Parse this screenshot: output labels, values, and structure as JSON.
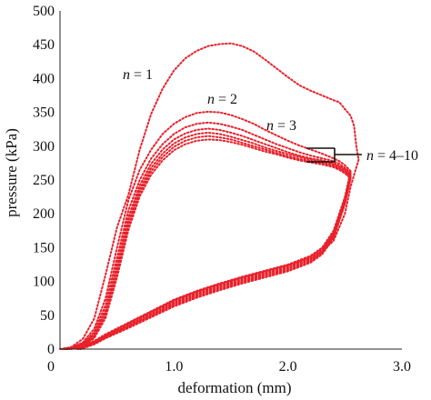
{
  "chart_data": {
    "type": "line",
    "xlabel": "deformation (mm)",
    "ylabel": "pressure (kPa)",
    "xlim": [
      0,
      3.0
    ],
    "ylim": [
      0,
      500
    ],
    "x_ticks": [
      "0",
      "1.0",
      "2.0",
      "3.0"
    ],
    "y_ticks": [
      "0",
      "50",
      "100",
      "150",
      "200",
      "250",
      "300",
      "350",
      "400",
      "450",
      "500"
    ],
    "line_color": "#e8212b",
    "line_style": "dotted",
    "grid": false,
    "annotations": [
      {
        "text": "n = 1"
      },
      {
        "text": "n = 2"
      },
      {
        "text": "n = 3"
      },
      {
        "text": "n = 4–10"
      }
    ],
    "series": [
      {
        "loading": [
          [
            0.0,
            0
          ],
          [
            0.1,
            3
          ],
          [
            0.2,
            15
          ],
          [
            0.3,
            45
          ],
          [
            0.4,
            110
          ],
          [
            0.5,
            180
          ],
          [
            0.6,
            228
          ],
          [
            0.7,
            295
          ],
          [
            0.8,
            348
          ],
          [
            0.9,
            385
          ],
          [
            1.0,
            412
          ],
          [
            1.1,
            430
          ],
          [
            1.2,
            441
          ],
          [
            1.3,
            448
          ],
          [
            1.4,
            451
          ],
          [
            1.5,
            452
          ],
          [
            1.6,
            448
          ],
          [
            1.7,
            440
          ],
          [
            1.8,
            428
          ],
          [
            1.9,
            415
          ],
          [
            2.0,
            402
          ],
          [
            2.1,
            390
          ],
          [
            2.2,
            382
          ],
          [
            2.3,
            375
          ],
          [
            2.4,
            368
          ],
          [
            2.45,
            365
          ],
          [
            2.5,
            355
          ],
          [
            2.55,
            345
          ],
          [
            2.58,
            330
          ],
          [
            2.6,
            300
          ],
          [
            2.62,
            280
          ]
        ],
        "unloading": [
          [
            2.62,
            280
          ],
          [
            2.55,
            240
          ],
          [
            2.5,
            200
          ],
          [
            2.4,
            160
          ],
          [
            2.3,
            145
          ],
          [
            2.2,
            135
          ],
          [
            2.0,
            124
          ],
          [
            1.8,
            115
          ],
          [
            1.6,
            106
          ],
          [
            1.4,
            96
          ],
          [
            1.2,
            85
          ],
          [
            1.0,
            72
          ],
          [
            0.8,
            55
          ],
          [
            0.6,
            38
          ],
          [
            0.4,
            20
          ],
          [
            0.3,
            10
          ],
          [
            0.2,
            3
          ],
          [
            0.1,
            0
          ]
        ]
      },
      {
        "loading": [
          [
            0.02,
            0
          ],
          [
            0.1,
            2
          ],
          [
            0.2,
            10
          ],
          [
            0.3,
            30
          ],
          [
            0.4,
            75
          ],
          [
            0.5,
            150
          ],
          [
            0.6,
            220
          ],
          [
            0.7,
            265
          ],
          [
            0.8,
            295
          ],
          [
            0.9,
            318
          ],
          [
            1.0,
            333
          ],
          [
            1.1,
            343
          ],
          [
            1.2,
            349
          ],
          [
            1.3,
            351
          ],
          [
            1.4,
            350
          ],
          [
            1.5,
            346
          ],
          [
            1.6,
            340
          ],
          [
            1.7,
            333
          ],
          [
            1.8,
            324
          ],
          [
            1.9,
            316
          ],
          [
            2.0,
            308
          ],
          [
            2.1,
            301
          ],
          [
            2.2,
            295
          ],
          [
            2.3,
            289
          ],
          [
            2.4,
            282
          ],
          [
            2.45,
            278
          ],
          [
            2.5,
            272
          ],
          [
            2.55,
            263
          ]
        ],
        "unloading": [
          [
            2.55,
            263
          ],
          [
            2.5,
            225
          ],
          [
            2.4,
            175
          ],
          [
            2.3,
            150
          ],
          [
            2.2,
            138
          ],
          [
            2.0,
            125
          ],
          [
            1.8,
            116
          ],
          [
            1.6,
            107
          ],
          [
            1.4,
            97
          ],
          [
            1.2,
            86
          ],
          [
            1.0,
            73
          ],
          [
            0.8,
            56
          ],
          [
            0.6,
            39
          ],
          [
            0.4,
            22
          ],
          [
            0.3,
            12
          ],
          [
            0.2,
            4
          ],
          [
            0.12,
            0
          ]
        ]
      },
      {
        "loading": [
          [
            0.04,
            0
          ],
          [
            0.1,
            2
          ],
          [
            0.2,
            8
          ],
          [
            0.3,
            25
          ],
          [
            0.4,
            65
          ],
          [
            0.5,
            135
          ],
          [
            0.6,
            205
          ],
          [
            0.7,
            250
          ],
          [
            0.8,
            282
          ],
          [
            0.9,
            303
          ],
          [
            1.0,
            318
          ],
          [
            1.1,
            328
          ],
          [
            1.2,
            333
          ],
          [
            1.3,
            335
          ],
          [
            1.4,
            333
          ],
          [
            1.5,
            329
          ],
          [
            1.6,
            324
          ],
          [
            1.7,
            317
          ],
          [
            1.8,
            310
          ],
          [
            1.9,
            303
          ],
          [
            2.0,
            297
          ],
          [
            2.1,
            291
          ],
          [
            2.2,
            286
          ],
          [
            2.3,
            282
          ],
          [
            2.4,
            278
          ],
          [
            2.45,
            274
          ],
          [
            2.5,
            268
          ],
          [
            2.55,
            260
          ]
        ],
        "unloading": [
          [
            2.55,
            260
          ],
          [
            2.5,
            222
          ],
          [
            2.4,
            172
          ],
          [
            2.3,
            148
          ],
          [
            2.2,
            136
          ],
          [
            2.0,
            123
          ],
          [
            1.8,
            114
          ],
          [
            1.6,
            105
          ],
          [
            1.4,
            95
          ],
          [
            1.2,
            84
          ],
          [
            1.0,
            71
          ],
          [
            0.8,
            54
          ],
          [
            0.6,
            37
          ],
          [
            0.4,
            20
          ],
          [
            0.3,
            11
          ],
          [
            0.2,
            3
          ],
          [
            0.14,
            0
          ]
        ]
      },
      {
        "loading": [
          [
            0.05,
            0
          ],
          [
            0.1,
            2
          ],
          [
            0.2,
            7
          ],
          [
            0.3,
            22
          ],
          [
            0.4,
            58
          ],
          [
            0.5,
            125
          ],
          [
            0.6,
            195
          ],
          [
            0.7,
            242
          ],
          [
            0.8,
            274
          ],
          [
            0.9,
            295
          ],
          [
            1.0,
            310
          ],
          [
            1.1,
            319
          ],
          [
            1.2,
            324
          ],
          [
            1.3,
            326
          ],
          [
            1.4,
            324
          ],
          [
            1.5,
            320
          ],
          [
            1.6,
            315
          ],
          [
            1.7,
            309
          ],
          [
            1.8,
            303
          ],
          [
            1.9,
            297
          ],
          [
            2.0,
            291
          ],
          [
            2.1,
            286
          ],
          [
            2.2,
            282
          ],
          [
            2.3,
            279
          ],
          [
            2.4,
            275
          ],
          [
            2.45,
            271
          ],
          [
            2.5,
            266
          ],
          [
            2.55,
            258
          ]
        ],
        "unloading": [
          [
            2.55,
            258
          ],
          [
            2.5,
            220
          ],
          [
            2.4,
            170
          ],
          [
            2.3,
            146
          ],
          [
            2.2,
            134
          ],
          [
            2.0,
            121
          ],
          [
            1.8,
            112
          ],
          [
            1.6,
            103
          ],
          [
            1.4,
            93
          ],
          [
            1.2,
            82
          ],
          [
            1.0,
            69
          ],
          [
            0.8,
            52
          ],
          [
            0.6,
            35
          ],
          [
            0.4,
            19
          ],
          [
            0.3,
            10
          ],
          [
            0.2,
            3
          ],
          [
            0.15,
            0
          ]
        ]
      },
      {
        "loading": [
          [
            0.06,
            0
          ],
          [
            0.1,
            2
          ],
          [
            0.2,
            6
          ],
          [
            0.3,
            20
          ],
          [
            0.4,
            54
          ],
          [
            0.5,
            118
          ],
          [
            0.6,
            188
          ],
          [
            0.7,
            236
          ],
          [
            0.8,
            268
          ],
          [
            0.9,
            289
          ],
          [
            1.0,
            304
          ],
          [
            1.1,
            313
          ],
          [
            1.2,
            318
          ],
          [
            1.3,
            320
          ],
          [
            1.4,
            318
          ],
          [
            1.5,
            314
          ],
          [
            1.6,
            309
          ],
          [
            1.7,
            304
          ],
          [
            1.8,
            298
          ],
          [
            1.9,
            293
          ],
          [
            2.0,
            288
          ],
          [
            2.1,
            284
          ],
          [
            2.2,
            280
          ],
          [
            2.3,
            277
          ],
          [
            2.4,
            273
          ],
          [
            2.45,
            269
          ],
          [
            2.5,
            264
          ],
          [
            2.55,
            256
          ]
        ],
        "unloading": [
          [
            2.55,
            256
          ],
          [
            2.5,
            218
          ],
          [
            2.4,
            168
          ],
          [
            2.3,
            144
          ],
          [
            2.2,
            132
          ],
          [
            2.0,
            119
          ],
          [
            1.8,
            110
          ],
          [
            1.6,
            101
          ],
          [
            1.4,
            91
          ],
          [
            1.2,
            80
          ],
          [
            1.0,
            67
          ],
          [
            0.8,
            50
          ],
          [
            0.6,
            34
          ],
          [
            0.4,
            18
          ],
          [
            0.3,
            9
          ],
          [
            0.2,
            2
          ],
          [
            0.16,
            0
          ]
        ]
      },
      {
        "loading": [
          [
            0.07,
            0
          ],
          [
            0.1,
            1
          ],
          [
            0.2,
            5
          ],
          [
            0.3,
            18
          ],
          [
            0.4,
            50
          ],
          [
            0.5,
            112
          ],
          [
            0.6,
            182
          ],
          [
            0.7,
            231
          ],
          [
            0.8,
            263
          ],
          [
            0.9,
            284
          ],
          [
            1.0,
            299
          ],
          [
            1.1,
            308
          ],
          [
            1.2,
            313
          ],
          [
            1.3,
            315
          ],
          [
            1.4,
            313
          ],
          [
            1.5,
            310
          ],
          [
            1.6,
            305
          ],
          [
            1.7,
            300
          ],
          [
            1.8,
            295
          ],
          [
            1.9,
            290
          ],
          [
            2.0,
            285
          ],
          [
            2.1,
            281
          ],
          [
            2.2,
            278
          ],
          [
            2.3,
            275
          ],
          [
            2.4,
            271
          ],
          [
            2.45,
            267
          ],
          [
            2.5,
            262
          ],
          [
            2.55,
            254
          ]
        ],
        "unloading": [
          [
            2.55,
            254
          ],
          [
            2.5,
            216
          ],
          [
            2.4,
            166
          ],
          [
            2.3,
            142
          ],
          [
            2.2,
            130
          ],
          [
            2.0,
            117
          ],
          [
            1.8,
            108
          ],
          [
            1.6,
            99
          ],
          [
            1.4,
            89
          ],
          [
            1.2,
            78
          ],
          [
            1.0,
            65
          ],
          [
            0.8,
            49
          ],
          [
            0.6,
            33
          ],
          [
            0.4,
            17
          ],
          [
            0.3,
            8
          ],
          [
            0.2,
            2
          ],
          [
            0.17,
            0
          ]
        ]
      },
      {
        "loading": [
          [
            0.08,
            0
          ],
          [
            0.1,
            1
          ],
          [
            0.2,
            4
          ],
          [
            0.3,
            16
          ],
          [
            0.4,
            46
          ],
          [
            0.5,
            106
          ],
          [
            0.6,
            176
          ],
          [
            0.7,
            226
          ],
          [
            0.8,
            258
          ],
          [
            0.9,
            279
          ],
          [
            1.0,
            294
          ],
          [
            1.1,
            303
          ],
          [
            1.2,
            308
          ],
          [
            1.3,
            310
          ],
          [
            1.4,
            309
          ],
          [
            1.5,
            306
          ],
          [
            1.6,
            302
          ],
          [
            1.7,
            297
          ],
          [
            1.8,
            292
          ],
          [
            1.9,
            288
          ],
          [
            2.0,
            283
          ],
          [
            2.1,
            279
          ],
          [
            2.2,
            276
          ],
          [
            2.3,
            273
          ],
          [
            2.4,
            269
          ],
          [
            2.45,
            265
          ],
          [
            2.5,
            260
          ],
          [
            2.55,
            252
          ]
        ],
        "unloading": [
          [
            2.55,
            252
          ],
          [
            2.5,
            214
          ],
          [
            2.4,
            164
          ],
          [
            2.3,
            140
          ],
          [
            2.2,
            128
          ],
          [
            2.0,
            115
          ],
          [
            1.8,
            106
          ],
          [
            1.6,
            97
          ],
          [
            1.4,
            87
          ],
          [
            1.2,
            76
          ],
          [
            1.0,
            63
          ],
          [
            0.8,
            47
          ],
          [
            0.6,
            31
          ],
          [
            0.4,
            16
          ],
          [
            0.3,
            7
          ],
          [
            0.2,
            1
          ],
          [
            0.18,
            0
          ]
        ]
      }
    ]
  }
}
